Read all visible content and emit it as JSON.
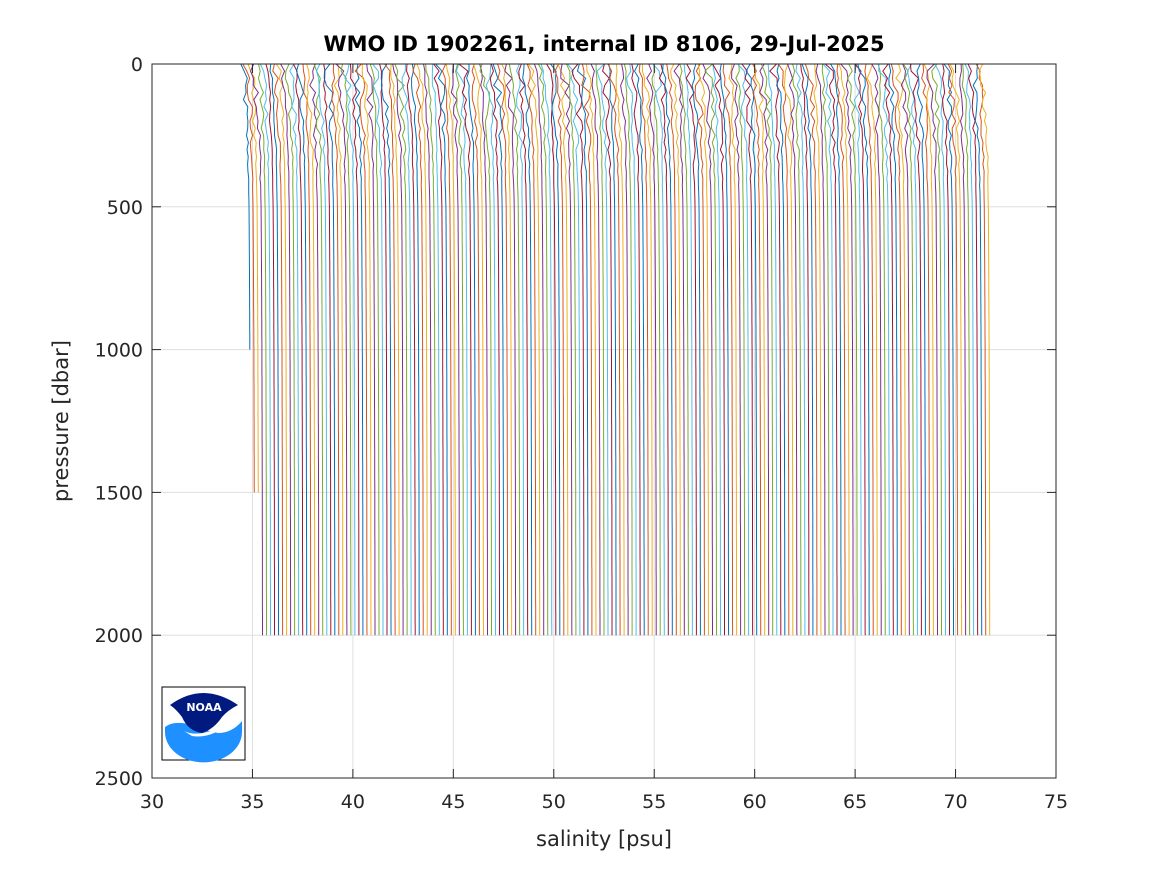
{
  "chart_data": {
    "type": "line",
    "title": "WMO ID 1902261, internal ID 8106, 29-Jul-2025",
    "xlabel": "salinity [psu]",
    "ylabel": "pressure [dbar]",
    "xlim": [
      30,
      75
    ],
    "ylim": [
      0,
      2500
    ],
    "y_reversed": true,
    "xticks": [
      30,
      35,
      40,
      45,
      50,
      55,
      60,
      65,
      70,
      75
    ],
    "yticks": [
      0,
      500,
      1000,
      1500,
      2000,
      2500
    ],
    "xtick_labels": [
      "30",
      "35",
      "40",
      "45",
      "50",
      "55",
      "60",
      "65",
      "70",
      "75"
    ],
    "ytick_labels": [
      "0",
      "500",
      "1000",
      "1500",
      "2000",
      "2500"
    ],
    "grid": true,
    "profile_count": 185,
    "profile_offset_psu": 0.2,
    "first_profile_deep_salinity": 34.9,
    "profile_max_pressure": 2000,
    "first_profiles_max_pressure": [
      1000,
      1500,
      1500
    ],
    "representative_profile": {
      "pressure": [
        0,
        100,
        200,
        300,
        400,
        500,
        700,
        1000,
        1500,
        2000
      ],
      "salinity": [
        34.55,
        34.68,
        34.75,
        34.82,
        34.85,
        34.88,
        34.9,
        34.92,
        34.94,
        34.95
      ]
    },
    "series_colors": [
      "#0072BD",
      "#D95319",
      "#EDB120",
      "#7E2F8E",
      "#77AC30",
      "#4DBEEE",
      "#A2142F"
    ],
    "logo": {
      "text": "NOAA",
      "colors": {
        "dark": "#001A80",
        "light": "#1E90FF",
        "frame": "#000000"
      }
    }
  }
}
